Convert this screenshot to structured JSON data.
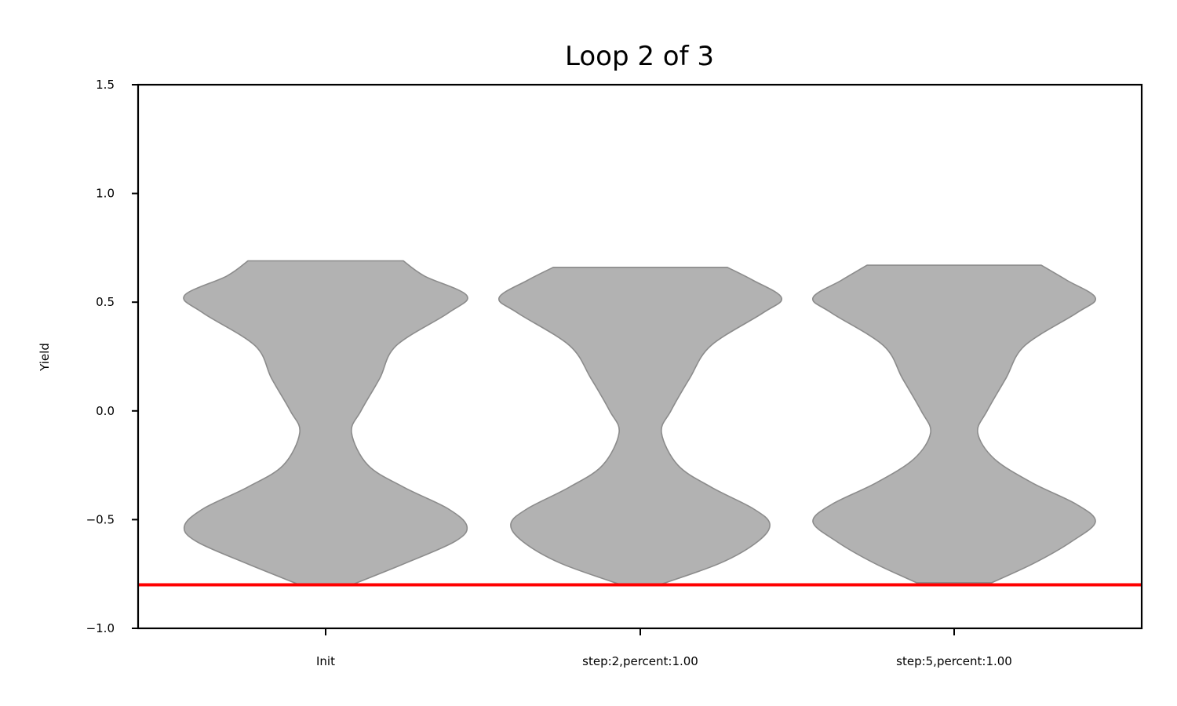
{
  "chart_data": {
    "type": "violin",
    "title": "Loop 2 of 3",
    "xlabel": "",
    "ylabel": "Yield",
    "ylim": [
      -1.0,
      1.5
    ],
    "yticks": [
      "1.5",
      "1.0",
      "0.5",
      "0.0",
      "−0.5",
      "−1.0"
    ],
    "ytick_values": [
      1.5,
      1.0,
      0.5,
      0.0,
      -0.5,
      -1.0
    ],
    "categories": [
      "Init",
      "step:2,percent:1.00",
      "step:5,percent:1.00"
    ],
    "reference_line": {
      "y": -0.8,
      "color": "#ff0000"
    },
    "violin_color": "#b2b2b2",
    "violin_edge_color": "#8c8c8c",
    "violins": [
      {
        "name": "Init",
        "min": -0.8,
        "max": 0.69,
        "profile": [
          [
            -0.8,
            0.11
          ],
          [
            -0.7,
            0.34
          ],
          [
            -0.6,
            0.55
          ],
          [
            -0.53,
            0.6
          ],
          [
            -0.45,
            0.52
          ],
          [
            -0.35,
            0.33
          ],
          [
            -0.25,
            0.18
          ],
          [
            -0.1,
            0.11
          ],
          [
            0.0,
            0.15
          ],
          [
            0.15,
            0.23
          ],
          [
            0.3,
            0.3
          ],
          [
            0.45,
            0.52
          ],
          [
            0.53,
            0.6
          ],
          [
            0.62,
            0.42
          ],
          [
            0.69,
            0.33
          ]
        ]
      },
      {
        "name": "step:2,percent:1.00",
        "min": -0.8,
        "max": 0.66,
        "profile": [
          [
            -0.8,
            0.08
          ],
          [
            -0.7,
            0.34
          ],
          [
            -0.6,
            0.5
          ],
          [
            -0.52,
            0.55
          ],
          [
            -0.45,
            0.48
          ],
          [
            -0.35,
            0.3
          ],
          [
            -0.25,
            0.16
          ],
          [
            -0.1,
            0.09
          ],
          [
            0.0,
            0.13
          ],
          [
            0.15,
            0.21
          ],
          [
            0.3,
            0.3
          ],
          [
            0.45,
            0.52
          ],
          [
            0.52,
            0.6
          ],
          [
            0.6,
            0.48
          ],
          [
            0.66,
            0.37
          ]
        ]
      },
      {
        "name": "step:5,percent:1.00",
        "min": -0.79,
        "max": 0.67,
        "profile": [
          [
            -0.79,
            0.16
          ],
          [
            -0.7,
            0.34
          ],
          [
            -0.6,
            0.5
          ],
          [
            -0.51,
            0.6
          ],
          [
            -0.43,
            0.52
          ],
          [
            -0.33,
            0.33
          ],
          [
            -0.22,
            0.17
          ],
          [
            -0.1,
            0.1
          ],
          [
            0.0,
            0.14
          ],
          [
            0.15,
            0.22
          ],
          [
            0.3,
            0.3
          ],
          [
            0.45,
            0.52
          ],
          [
            0.52,
            0.6
          ],
          [
            0.6,
            0.48
          ],
          [
            0.67,
            0.37
          ]
        ]
      }
    ]
  }
}
